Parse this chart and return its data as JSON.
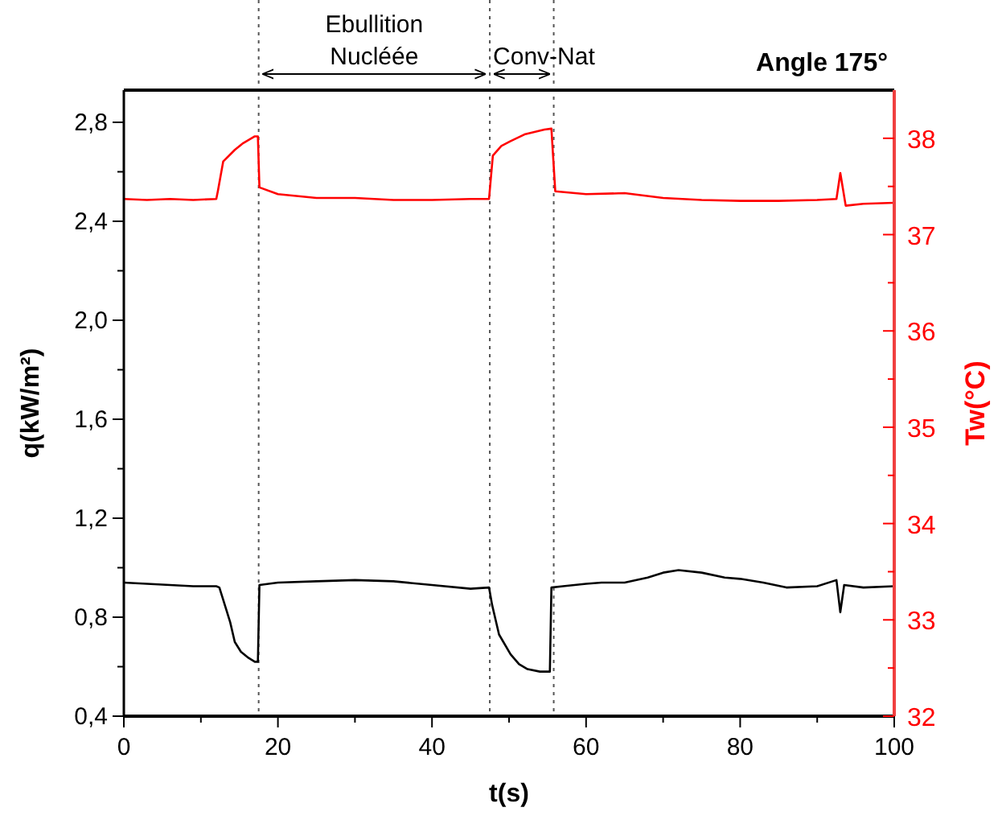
{
  "chart_data": {
    "type": "line",
    "title": "Angle 175°",
    "xlabel": "t(s)",
    "ylabel": "q(kW/m²)",
    "y2label": "Tw(°C)",
    "xlim": [
      0,
      100
    ],
    "xticks": [
      0,
      {
        "value": 10,
        "label": null
      },
      20,
      {
        "value": 30,
        "label": null
      },
      40,
      {
        "value": 50,
        "label": null
      },
      60,
      {
        "value": 70,
        "label": null
      },
      80,
      {
        "value": 90,
        "label": null
      },
      100
    ],
    "ylim": [
      0.4,
      2.93
    ],
    "yticks": [
      "0,4",
      {
        "value": 0.6,
        "label": null
      },
      {
        "value": 0.8,
        "label": "0,8"
      },
      {
        "value": 1.0,
        "label": null
      },
      {
        "value": 1.2,
        "label": "1,2"
      },
      {
        "value": 1.4,
        "label": null
      },
      {
        "value": 1.6,
        "label": "1,6"
      },
      {
        "value": 1.8,
        "label": null
      },
      {
        "value": 2.0,
        "label": "2,0"
      },
      {
        "value": 2.2,
        "label": null
      },
      {
        "value": 2.4,
        "label": "2,4"
      },
      {
        "value": 2.6,
        "label": null
      },
      {
        "value": 2.8,
        "label": "2,8"
      }
    ],
    "y2lim": [
      32,
      38.5
    ],
    "y2ticks": [
      32,
      {
        "value": 32.5,
        "label": null
      },
      33,
      {
        "value": 33.5,
        "label": null
      },
      34,
      {
        "value": 34.5,
        "label": null
      },
      35,
      {
        "value": 35.5,
        "label": null
      },
      36,
      {
        "value": 36.5,
        "label": null
      },
      37,
      {
        "value": 37.5,
        "label": null
      },
      38
    ],
    "grid": false,
    "line_style": "solid",
    "marker": "none",
    "ref_lines": [
      {
        "axis": "x",
        "value": 17.5,
        "color": "#555555",
        "line_style": "dotted"
      },
      {
        "axis": "x",
        "value": 47.5,
        "color": "#555555",
        "line_style": "dotted"
      },
      {
        "axis": "x",
        "value": 55.8,
        "color": "#555555",
        "line_style": "dotted"
      }
    ],
    "annotations": [
      "Ebullition\nNucléée",
      "Conv-Nat"
    ],
    "series": [
      {
        "color": "#000000",
        "x": [
          0,
          3,
          6,
          9,
          12,
          12.4,
          13.2,
          13.8,
          14.4,
          15.2,
          16.2,
          17.0,
          17.4,
          17.6,
          20,
          25,
          30,
          35,
          40,
          45,
          47.4,
          47.8,
          48.7,
          50.2,
          51.3,
          52.4,
          54,
          55.3,
          55.5,
          57,
          60,
          62,
          65,
          68,
          70,
          72,
          75,
          78,
          80,
          83,
          86,
          90,
          92.5,
          93,
          93.5,
          96,
          100
        ],
        "values": [
          0.94,
          0.935,
          0.93,
          0.925,
          0.925,
          0.92,
          0.84,
          0.78,
          0.7,
          0.66,
          0.635,
          0.62,
          0.62,
          0.93,
          0.94,
          0.945,
          0.95,
          0.945,
          0.93,
          0.915,
          0.92,
          0.85,
          0.73,
          0.65,
          0.61,
          0.59,
          0.58,
          0.58,
          0.92,
          0.925,
          0.935,
          0.94,
          0.94,
          0.96,
          0.98,
          0.99,
          0.98,
          0.96,
          0.955,
          0.94,
          0.92,
          0.925,
          0.95,
          0.82,
          0.93,
          0.92,
          0.925
        ]
      },
      {
        "color": "#ff0000",
        "axis": "y2",
        "x": [
          0,
          3,
          6,
          9,
          12,
          12.2,
          12.9,
          14.4,
          15.5,
          17.0,
          17.4,
          17.6,
          20,
          25,
          30,
          35,
          40,
          45,
          47.4,
          47.9,
          49,
          50.2,
          52,
          54.6,
          55.5,
          56,
          60,
          65,
          70,
          75,
          80,
          85,
          90,
          92.5,
          93,
          93.7,
          96,
          100
        ],
        "values": [
          37.37,
          37.36,
          37.37,
          37.36,
          37.37,
          37.45,
          37.76,
          37.88,
          37.95,
          38.02,
          38.02,
          37.49,
          37.42,
          37.38,
          37.38,
          37.36,
          37.36,
          37.37,
          37.37,
          37.82,
          37.92,
          37.97,
          38.04,
          38.09,
          38.1,
          37.45,
          37.42,
          37.43,
          37.38,
          37.36,
          37.35,
          37.35,
          37.36,
          37.37,
          37.64,
          37.3,
          37.32,
          37.33
        ]
      }
    ]
  }
}
